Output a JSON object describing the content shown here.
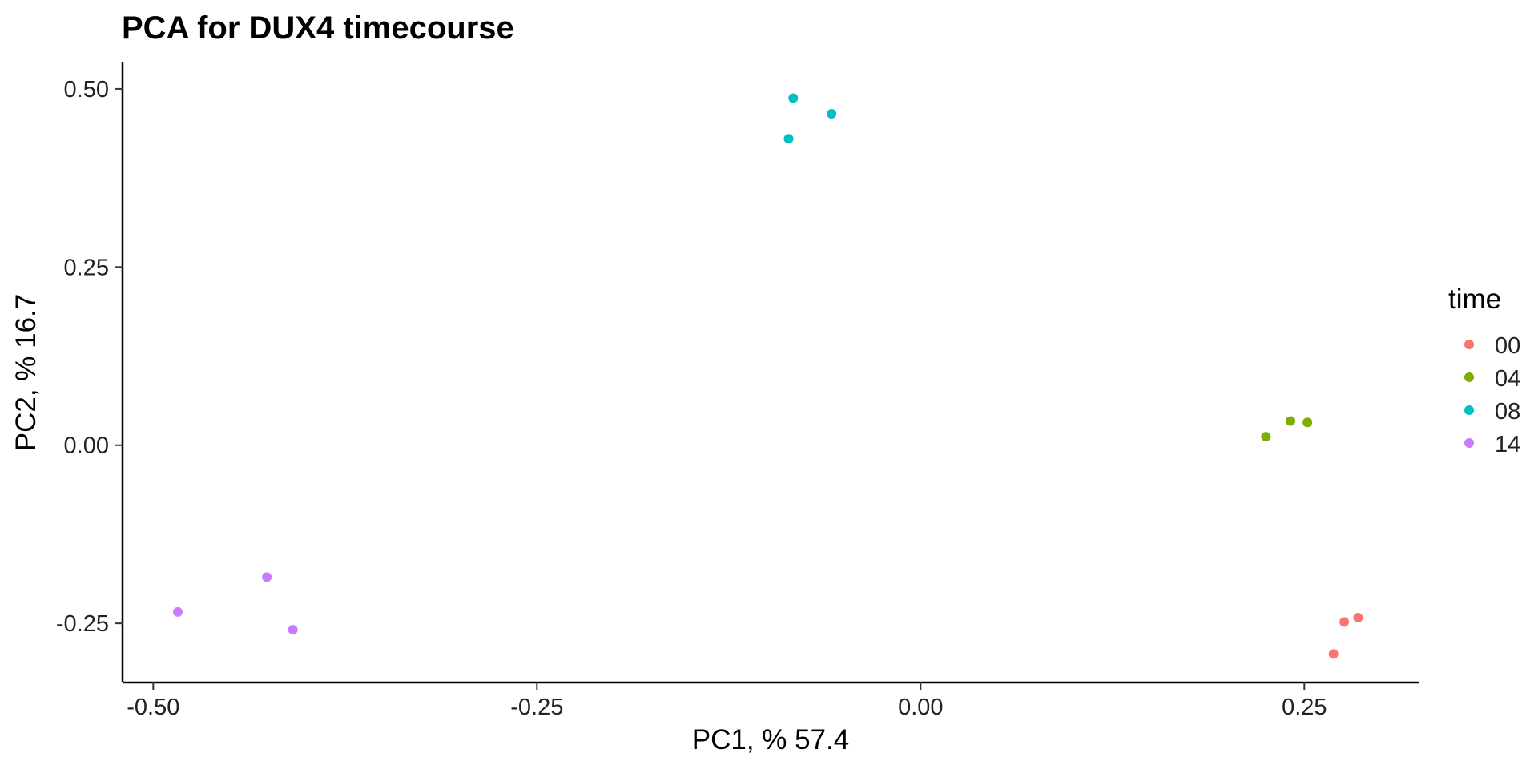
{
  "chart_data": {
    "type": "scatter",
    "title": "PCA for DUX4 timecourse",
    "xlabel": "PC1, % 57.4",
    "ylabel": "PC2, % 16.7",
    "xlim": [
      -0.52,
      0.325
    ],
    "ylim": [
      -0.333,
      0.537
    ],
    "xticks": [
      -0.5,
      -0.25,
      0.0,
      0.25
    ],
    "xtick_labels": [
      "-0.50",
      "-0.25",
      "0.00",
      "0.25"
    ],
    "yticks": [
      -0.25,
      0.0,
      0.25,
      0.5
    ],
    "ytick_labels": [
      "-0.25",
      "0.00",
      "0.25",
      "0.50"
    ],
    "grid": false,
    "legend": {
      "title": "time",
      "placement": "right"
    },
    "series": [
      {
        "name": "00",
        "color": "#F8766D",
        "points": [
          {
            "x": 0.285,
            "y": -0.242
          },
          {
            "x": 0.276,
            "y": -0.248
          },
          {
            "x": 0.269,
            "y": -0.293
          }
        ]
      },
      {
        "name": "04",
        "color": "#7CAE00",
        "points": [
          {
            "x": 0.225,
            "y": 0.012
          },
          {
            "x": 0.241,
            "y": 0.034
          },
          {
            "x": 0.252,
            "y": 0.032
          }
        ]
      },
      {
        "name": "08",
        "color": "#00BFC4",
        "points": [
          {
            "x": -0.083,
            "y": 0.487
          },
          {
            "x": -0.058,
            "y": 0.465
          },
          {
            "x": -0.086,
            "y": 0.43
          }
        ]
      },
      {
        "name": "14",
        "color": "#C77CFF",
        "points": [
          {
            "x": -0.484,
            "y": -0.234
          },
          {
            "x": -0.426,
            "y": -0.185
          },
          {
            "x": -0.409,
            "y": -0.259
          }
        ]
      }
    ]
  }
}
